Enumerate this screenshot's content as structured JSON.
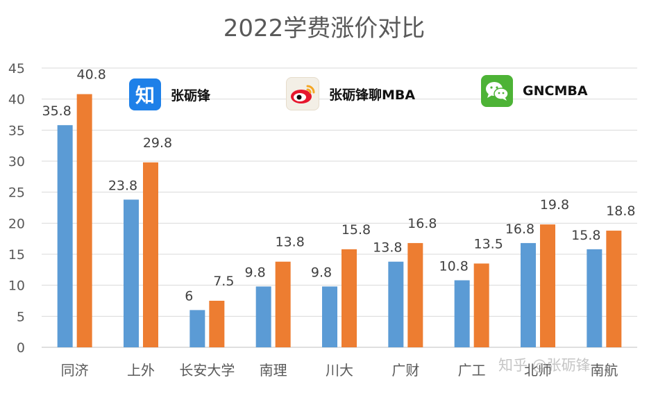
{
  "chart_data": {
    "type": "bar",
    "title": "2022学费涨价对比",
    "categories": [
      "同济",
      "上外",
      "长安大学",
      "南理",
      "川大",
      "广财",
      "广工",
      "北师",
      "南航"
    ],
    "series": [
      {
        "values": [
          35.8,
          23.8,
          6,
          9.8,
          9.8,
          13.8,
          10.8,
          16.8,
          15.8
        ],
        "color": "#5B9BD5"
      },
      {
        "values": [
          40.8,
          29.8,
          7.5,
          13.8,
          15.8,
          16.8,
          13.5,
          19.8,
          18.8
        ],
        "color": "#ED7D31"
      }
    ],
    "ylim": [
      0,
      45
    ],
    "yticks": [
      0,
      5,
      10,
      15,
      20,
      25,
      30,
      35,
      40,
      45
    ],
    "grid": true,
    "legend": "none"
  },
  "brands": [
    {
      "icon": "zhihu-icon",
      "text": "张砺锋",
      "color": "#1E80E8"
    },
    {
      "icon": "weibo-icon",
      "text": "张砺锋聊MBA",
      "color": "#E6162D"
    },
    {
      "icon": "wechat-icon",
      "text": "GNCMBA",
      "color": "#4DB336"
    }
  ],
  "watermark": "知乎 @张砺锋"
}
